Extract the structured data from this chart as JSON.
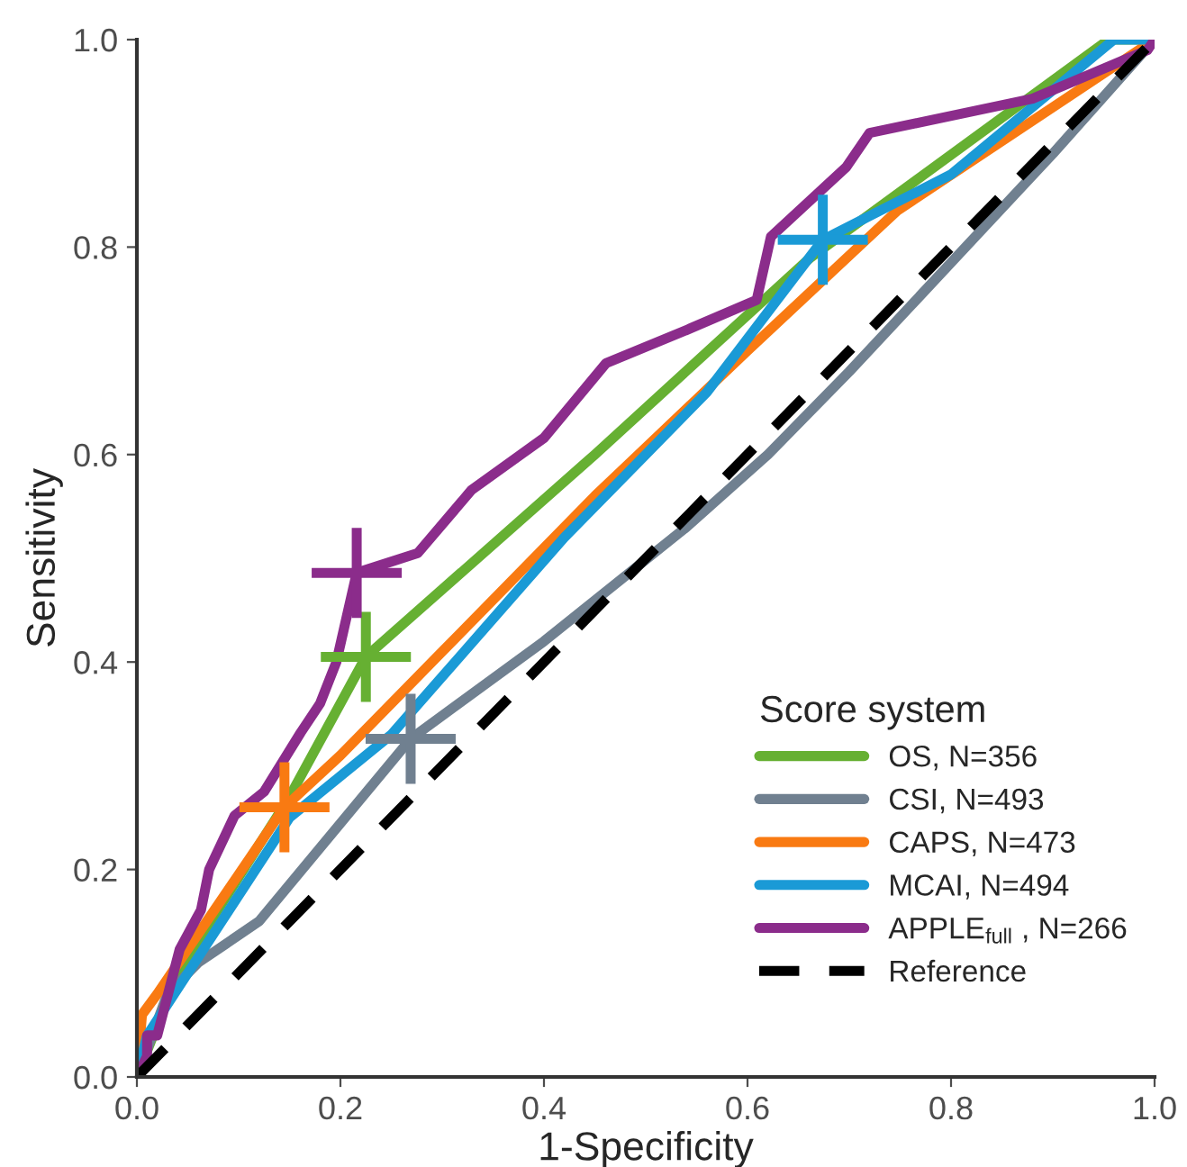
{
  "chart_data": {
    "type": "line",
    "xlabel": "1-Specificity",
    "ylabel": "Sensitivity",
    "legend_title": "Score system",
    "legend": "bottom right",
    "grid": false,
    "marker": "none",
    "xlim": [
      0,
      1
    ],
    "ylim": [
      0,
      1
    ],
    "xticks": [
      {
        "value": 0,
        "label": "0.0"
      },
      {
        "value": 0.2,
        "label": "0.2"
      },
      {
        "value": 0.4,
        "label": "0.4"
      },
      {
        "value": 0.6,
        "label": "0.6"
      },
      {
        "value": 0.8,
        "label": "0.8"
      },
      {
        "value": 1,
        "label": "1.0"
      }
    ],
    "yticks": [
      {
        "value": 0,
        "label": "0.0"
      },
      {
        "value": 0.2,
        "label": "0.2"
      },
      {
        "value": 0.4,
        "label": "0.4"
      },
      {
        "value": 0.6,
        "label": "0.6"
      },
      {
        "value": 0.8,
        "label": "0.8"
      },
      {
        "value": 1,
        "label": "1.0"
      }
    ],
    "series": [
      {
        "name": "OS, N=356",
        "color": "#66b032",
        "x": [
          0,
          0.04,
          0.15,
          0.225,
          0.45,
          0.662,
          0.955,
          1
        ],
        "values": [
          0,
          0.1,
          0.27,
          0.405,
          0.6,
          0.79,
          1,
          1
        ]
      },
      {
        "name": "CSI, N=493",
        "color": "#708090",
        "x": [
          0,
          0.03,
          0.06,
          0.12,
          0.269,
          0.4,
          0.54,
          0.62,
          0.7,
          0.9,
          1
        ],
        "values": [
          0,
          0.08,
          0.11,
          0.15,
          0.326,
          0.42,
          0.53,
          0.6,
          0.68,
          0.89,
          1
        ]
      },
      {
        "name": "CAPS, N=473",
        "color": "#f97a12",
        "x": [
          0,
          0.005,
          0.02,
          0.145,
          0.2,
          0.3,
          0.45,
          0.6,
          0.747,
          1
        ],
        "values": [
          0,
          0.06,
          0.08,
          0.26,
          0.31,
          0.41,
          0.56,
          0.7,
          0.835,
          1
        ]
      },
      {
        "name": "MCAI, N=494",
        "color": "#1a9ad6",
        "x": [
          0,
          0.01,
          0.05,
          0.15,
          0.25,
          0.42,
          0.56,
          0.674,
          0.8,
          0.96,
          1
        ],
        "values": [
          0,
          0.04,
          0.1,
          0.25,
          0.33,
          0.52,
          0.66,
          0.807,
          0.87,
          1,
          1
        ]
      },
      {
        "name": "APPLE$_{full}$ , N=266",
        "color": "#8b2c8b",
        "x": [
          0,
          0.01,
          0.01,
          0.02,
          0.042,
          0.063,
          0.071,
          0.096,
          0.125,
          0.161,
          0.18,
          0.196,
          0.216,
          0.276,
          0.329,
          0.4,
          0.461,
          0.54,
          0.609,
          0.623,
          0.697,
          0.72,
          0.88,
          0.993,
          1
        ],
        "values": [
          0,
          0.02,
          0.04,
          0.04,
          0.123,
          0.161,
          0.2,
          0.252,
          0.275,
          0.332,
          0.36,
          0.4,
          0.486,
          0.505,
          0.566,
          0.616,
          0.688,
          0.72,
          0.749,
          0.81,
          0.877,
          0.91,
          0.943,
          0.99,
          1
        ]
      },
      {
        "name": "Reference",
        "color": "#000000",
        "line_style": "dashed",
        "x": [
          0,
          1
        ],
        "values": [
          0,
          1
        ]
      },
      {
        "type": "scatter",
        "marker": "cross",
        "color": "#66b032",
        "x": [
          0.225
        ],
        "values": [
          0.405
        ]
      },
      {
        "type": "scatter",
        "marker": "cross",
        "color": "#708090",
        "x": [
          0.269
        ],
        "values": [
          0.326
        ]
      },
      {
        "type": "scatter",
        "marker": "cross",
        "color": "#f97a12",
        "x": [
          0.145
        ],
        "values": [
          0.26
        ]
      },
      {
        "type": "scatter",
        "marker": "cross",
        "color": "#1a9ad6",
        "x": [
          0.674
        ],
        "values": [
          0.807
        ]
      },
      {
        "type": "scatter",
        "marker": "cross",
        "color": "#8b2c8b",
        "x": [
          0.216
        ],
        "values": [
          0.486
        ]
      }
    ]
  }
}
